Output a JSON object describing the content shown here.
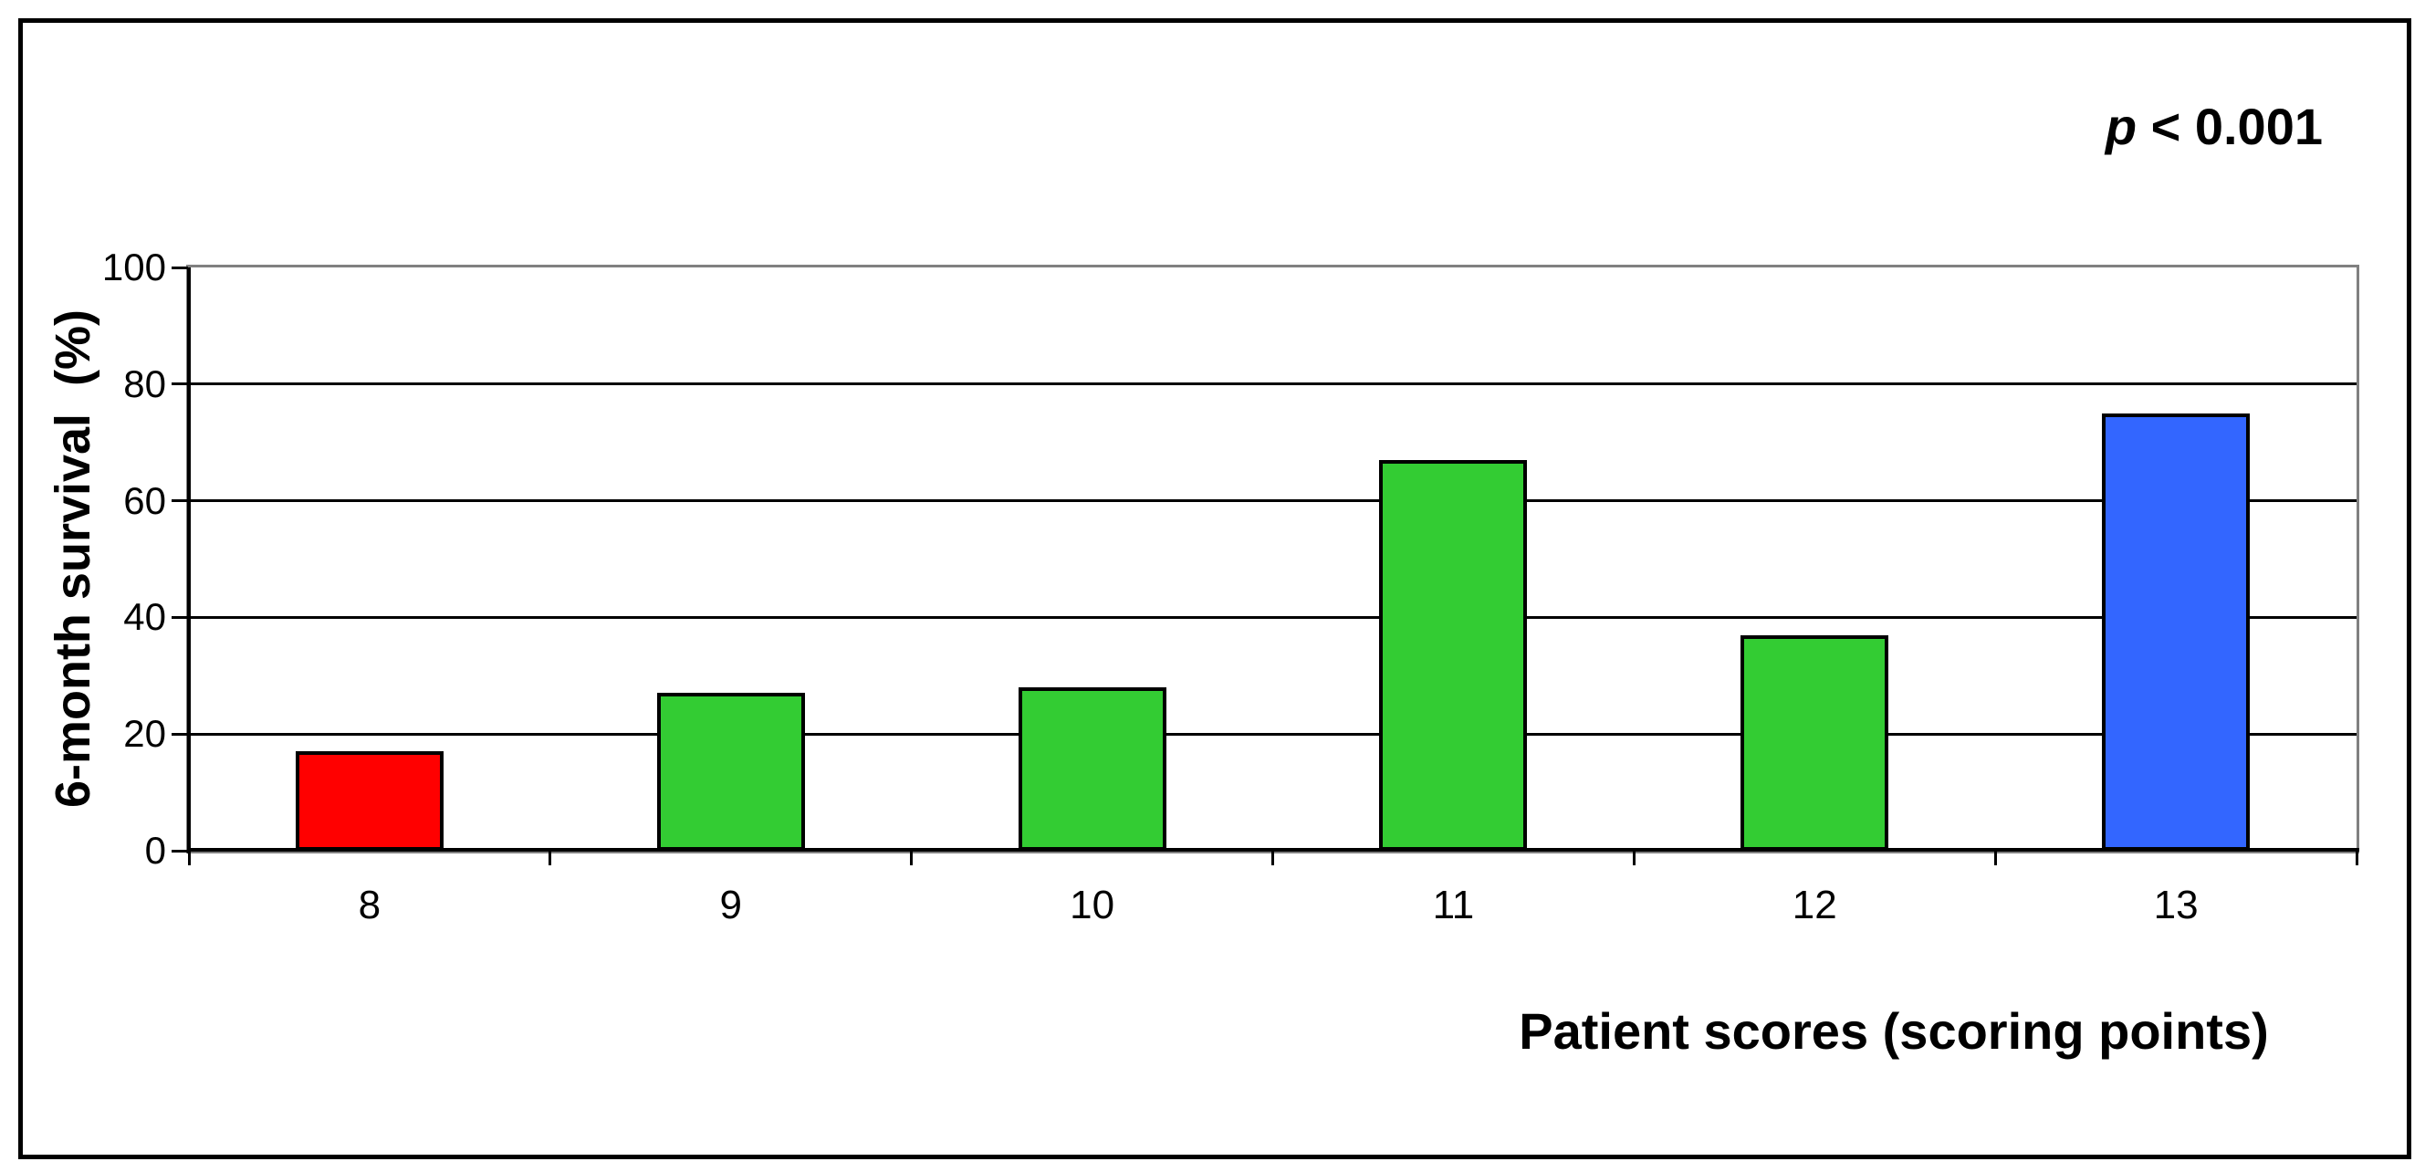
{
  "chart_data": {
    "type": "bar",
    "title": "",
    "categories": [
      "8",
      "9",
      "10",
      "11",
      "12",
      "13"
    ],
    "values": [
      17,
      27,
      28,
      67,
      37,
      75
    ],
    "bar_colors": [
      "#FF0000",
      "#33CC33",
      "#33CC33",
      "#33CC33",
      "#33CC33",
      "#3366FF"
    ],
    "xlabel": "Patient scores (scoring points)",
    "ylabel": "6-month survival  (%)",
    "ylim": [
      0,
      100
    ],
    "yticks": [
      0,
      20,
      40,
      60,
      80,
      100
    ],
    "ytick_labels": [
      "0",
      "20",
      "40",
      "60",
      "80",
      "100"
    ],
    "grid": "horizontal-black-lines",
    "legend": "none",
    "annotation": {
      "variable": "p",
      "comparison": " < 0.001",
      "text": "p < 0.001"
    },
    "colors": {
      "axis": "#000000",
      "plot_border": "#808080",
      "background": "#FFFFFF",
      "outer_frame": "#000000"
    }
  }
}
